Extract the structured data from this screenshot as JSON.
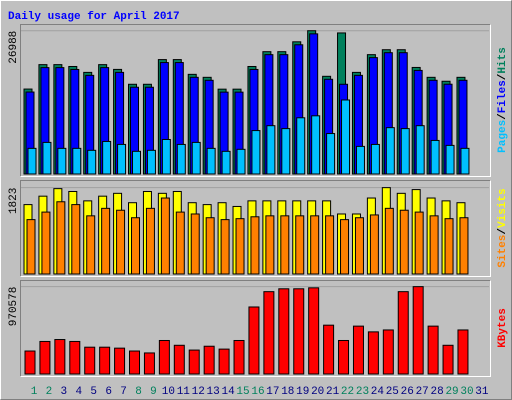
{
  "chart_data": [
    {
      "type": "bar",
      "title": "Daily usage for April 2017",
      "categories": [
        "1",
        "2",
        "3",
        "4",
        "5",
        "6",
        "7",
        "8",
        "9",
        "10",
        "11",
        "12",
        "13",
        "14",
        "15",
        "16",
        "17",
        "18",
        "19",
        "20",
        "21",
        "22",
        "23",
        "24",
        "25",
        "26",
        "27",
        "28",
        "29",
        "30",
        "31"
      ],
      "category_colors": [
        "#00805c",
        "#00805c",
        "#000080",
        "#000080",
        "#000080",
        "#000080",
        "#000080",
        "#00805c",
        "#00805c",
        "#000080",
        "#000080",
        "#000080",
        "#000080",
        "#000080",
        "#00805c",
        "#00805c",
        "#000080",
        "#000080",
        "#000080",
        "#000080",
        "#000080",
        "#00805c",
        "#00805c",
        "#000080",
        "#000080",
        "#000080",
        "#000080",
        "#000080",
        "#00805c",
        "#00805c",
        "#000080"
      ],
      "legend_separator": "/",
      "ylim": [
        0,
        27500
      ],
      "yticks": [
        26988
      ],
      "series": [
        {
          "name": "Hits",
          "color": "#00805c",
          "values": [
            16000,
            20600,
            20600,
            20250,
            19140,
            20600,
            19700,
            16900,
            16900,
            21550,
            21550,
            18770,
            18210,
            15980,
            15980,
            20250,
            23040,
            23040,
            24900,
            26988,
            18400,
            26570,
            19140,
            22480,
            23410,
            23410,
            20070,
            18210,
            17470,
            18210,
            null
          ]
        },
        {
          "name": "Files",
          "color": "#0000ff",
          "values": [
            15440,
            20040,
            20040,
            19690,
            18580,
            20040,
            19140,
            16340,
            16340,
            20990,
            20990,
            18210,
            17650,
            15420,
            15420,
            19690,
            22480,
            22480,
            24340,
            26400,
            17840,
            16900,
            18580,
            21920,
            22850,
            22850,
            19510,
            17650,
            16910,
            17650,
            null
          ]
        },
        {
          "name": "Pages",
          "color": "#00c0ff",
          "values": [
            4830,
            5950,
            4830,
            4830,
            4460,
            6130,
            5570,
            4270,
            4460,
            6500,
            5570,
            5950,
            4830,
            4270,
            4650,
            8180,
            9100,
            8550,
            10590,
            10960,
            7620,
            13940,
            5200,
            5570,
            8730,
            8550,
            9100,
            6320,
            5390,
            4830,
            null
          ]
        }
      ]
    },
    {
      "type": "bar",
      "ylim": [
        0,
        1900
      ],
      "yticks": [
        1823
      ],
      "series": [
        {
          "name": "Visits",
          "color": "#ffff00",
          "values": [
            1465,
            1643,
            1802,
            1742,
            1544,
            1643,
            1703,
            1505,
            1742,
            1703,
            1742,
            1505,
            1465,
            1505,
            1426,
            1544,
            1544,
            1544,
            1544,
            1544,
            1544,
            1267,
            1267,
            1604,
            1823,
            1703,
            1782,
            1604,
            1544,
            1505,
            null
          ]
        },
        {
          "name": "Sites",
          "color": "#ff8000",
          "values": [
            1148,
            1307,
            1525,
            1465,
            1228,
            1386,
            1346,
            1188,
            1386,
            1604,
            1307,
            1267,
            1188,
            1148,
            1168,
            1208,
            1228,
            1228,
            1228,
            1228,
            1228,
            1148,
            1188,
            1247,
            1386,
            1346,
            1307,
            1228,
            1168,
            1188,
            null
          ]
        }
      ]
    },
    {
      "type": "bar",
      "ylim": [
        0,
        1000000
      ],
      "yticks": [
        970578
      ],
      "series": [
        {
          "name": "KBytes",
          "color": "#ff0000",
          "values": [
            255300,
            361700,
            383000,
            361700,
            297900,
            297900,
            287200,
            255300,
            234000,
            372300,
            319100,
            265900,
            308500,
            276600,
            372300,
            744700,
            914900,
            946800,
            946800,
            957400,
            542500,
            372300,
            531900,
            468100,
            489400,
            914900,
            970578,
            531900,
            319100,
            489400,
            null
          ]
        }
      ]
    }
  ]
}
